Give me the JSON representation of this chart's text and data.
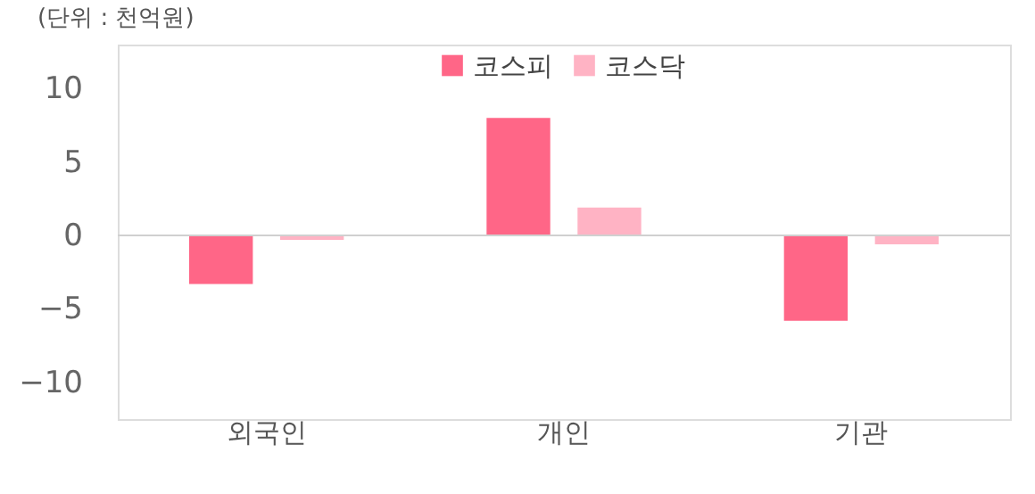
{
  "chart_data": {
    "type": "bar",
    "title": "(단위 : 천억원)",
    "categories": [
      "외국인",
      "개인",
      "기관"
    ],
    "series": [
      {
        "name": "코스피",
        "color": "#ff6687",
        "values": [
          -3.3,
          8.0,
          -5.8
        ]
      },
      {
        "name": "코스닥",
        "color": "#ffb3c4",
        "values": [
          -0.3,
          1.9,
          -0.6
        ]
      }
    ],
    "ylim": [
      -12.5,
      13
    ],
    "yticks": [
      -10,
      -5,
      0,
      5,
      10
    ],
    "grid": false,
    "ref_lines": [
      {
        "axis": "y",
        "value": 0,
        "color": "#d0d0d0"
      }
    ],
    "legend": "top"
  }
}
